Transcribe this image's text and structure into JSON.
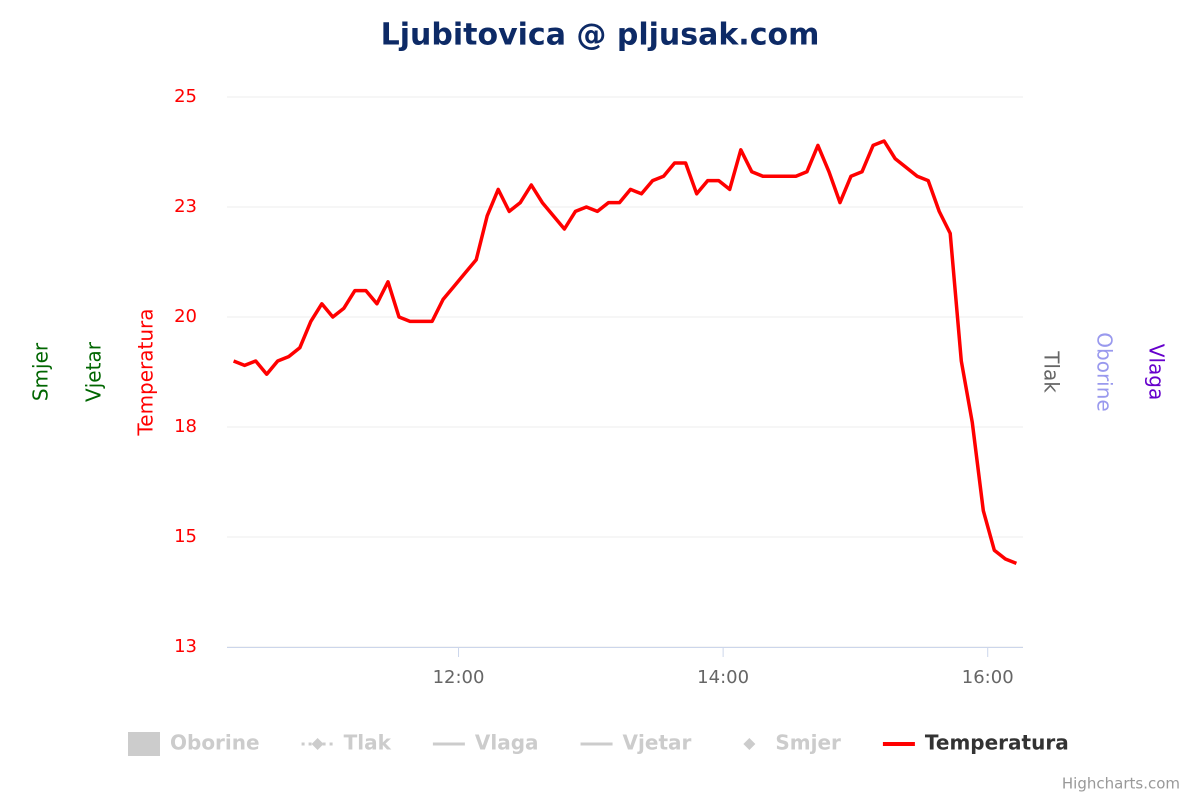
{
  "chart_data": {
    "type": "line",
    "title": "Ljubitovica @ pljusak.com",
    "credits": "Highcharts.com",
    "x": [
      "10:18",
      "10:23",
      "10:28",
      "10:33",
      "10:38",
      "10:43",
      "10:48",
      "10:53",
      "10:58",
      "11:03",
      "11:08",
      "11:13",
      "11:18",
      "11:23",
      "11:28",
      "11:33",
      "11:38",
      "11:43",
      "11:48",
      "11:53",
      "11:58",
      "12:03",
      "12:08",
      "12:13",
      "12:18",
      "12:23",
      "12:28",
      "12:33",
      "12:38",
      "12:43",
      "12:48",
      "12:53",
      "12:58",
      "13:03",
      "13:08",
      "13:13",
      "13:18",
      "13:23",
      "13:28",
      "13:33",
      "13:38",
      "13:43",
      "13:48",
      "13:53",
      "13:58",
      "14:03",
      "14:08",
      "14:13",
      "14:18",
      "14:23",
      "14:28",
      "14:33",
      "14:38",
      "14:43",
      "14:48",
      "14:53",
      "14:58",
      "15:03",
      "15:08",
      "15:13",
      "15:18",
      "15:23",
      "15:28",
      "15:33",
      "15:38",
      "15:43",
      "15:48",
      "15:53",
      "15:58",
      "16:03",
      "16:08",
      "16:13"
    ],
    "xlim": [
      "10:15",
      "16:16"
    ],
    "xticks": [
      "12:00",
      "14:00",
      "16:00"
    ],
    "series": [
      {
        "name": "Temperatura",
        "color": "#ff0000",
        "values": [
          19.0,
          18.9,
          19.0,
          18.7,
          19.0,
          19.1,
          19.3,
          19.9,
          20.3,
          20.0,
          20.2,
          20.6,
          20.6,
          20.3,
          20.8,
          20.0,
          19.9,
          19.9,
          19.9,
          20.4,
          20.7,
          21.0,
          21.3,
          22.3,
          22.9,
          22.4,
          22.6,
          23.0,
          22.6,
          22.3,
          22.0,
          22.4,
          22.5,
          22.4,
          22.6,
          22.6,
          22.9,
          22.8,
          23.1,
          23.2,
          23.5,
          23.5,
          22.8,
          23.1,
          23.1,
          22.9,
          23.8,
          23.3,
          23.2,
          23.2,
          23.2,
          23.2,
          23.3,
          23.9,
          23.3,
          22.6,
          23.2,
          23.3,
          23.9,
          24.0,
          23.6,
          23.4,
          23.2,
          23.1,
          22.4,
          21.9,
          19.0,
          17.6,
          15.6,
          14.7,
          14.5,
          14.4
        ]
      }
    ],
    "hidden_series": [
      {
        "name": "Oborine",
        "symbol": "area"
      },
      {
        "name": "Tlak",
        "symbol": "dash-diamond"
      },
      {
        "name": "Vlaga",
        "symbol": "line"
      },
      {
        "name": "Vjetar",
        "symbol": "line"
      },
      {
        "name": "Smjer",
        "symbol": "diamond"
      }
    ],
    "ylim": [
      12.5,
      25
    ],
    "yticks": [
      {
        "value": 12.5,
        "label": "13"
      },
      15,
      {
        "value": 17.5,
        "label": "18"
      },
      20,
      {
        "value": 22.5,
        "label": "23"
      },
      25
    ],
    "grid": true,
    "axis_titles": [
      {
        "text": "Smjer",
        "color": "#006600",
        "side": "left"
      },
      {
        "text": "Vjetar",
        "color": "#006600",
        "side": "left"
      },
      {
        "text": "Temperatura",
        "color": "#ff0000",
        "side": "left"
      },
      {
        "text": "Tlak",
        "color": "#666666",
        "side": "right"
      },
      {
        "text": "Oborine",
        "color": "#9999ee",
        "side": "right"
      },
      {
        "text": "Vlaga",
        "color": "#6600cc",
        "side": "right"
      }
    ]
  }
}
